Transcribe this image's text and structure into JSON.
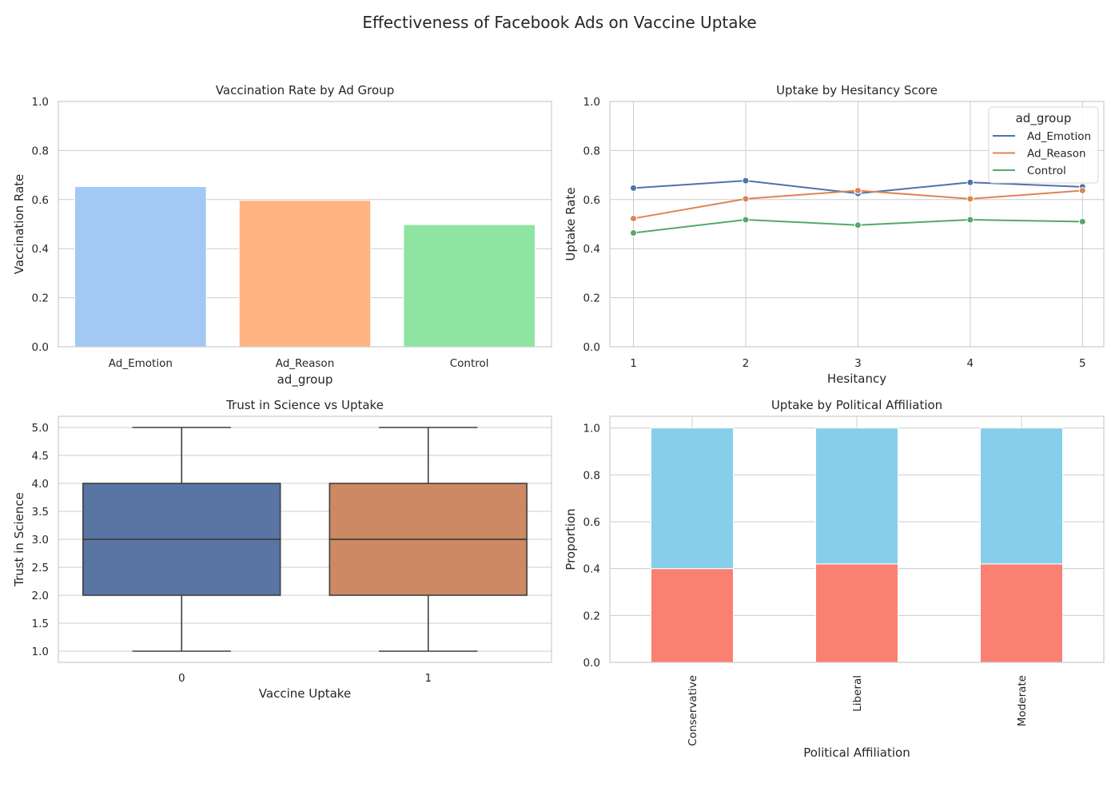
{
  "figure": {
    "title": "Effectiveness of Facebook Ads on Vaccine Uptake"
  },
  "chart_data": [
    {
      "type": "bar",
      "title": "Vaccination Rate by Ad Group",
      "xlabel": "ad_group",
      "ylabel": "Vaccination Rate",
      "categories": [
        "Ad_Emotion",
        "Ad_Reason",
        "Control"
      ],
      "values": [
        0.653,
        0.597,
        0.498
      ],
      "colors": [
        "#a1c9f4",
        "#ffb482",
        "#8de5a1"
      ],
      "ylim": [
        0,
        1
      ],
      "yticks": [
        "0.0",
        "0.2",
        "0.4",
        "0.6",
        "0.8",
        "1.0"
      ],
      "grid": true
    },
    {
      "type": "line",
      "title": "Uptake by Hesitancy Score",
      "xlabel": "Hesitancy",
      "ylabel": "Uptake Rate",
      "x": [
        1,
        2,
        3,
        4,
        5
      ],
      "xticks": [
        "1",
        "2",
        "3",
        "4",
        "5"
      ],
      "ylim": [
        0,
        1
      ],
      "yticks": [
        "0.0",
        "0.2",
        "0.4",
        "0.6",
        "0.8",
        "1.0"
      ],
      "legend": {
        "title": "ad_group",
        "placement": "upper-right"
      },
      "series": [
        {
          "name": "Ad_Emotion",
          "values": [
            0.647,
            0.677,
            0.625,
            0.67,
            0.652
          ],
          "color": "#4c72b0"
        },
        {
          "name": "Ad_Reason",
          "values": [
            0.523,
            0.603,
            0.637,
            0.603,
            0.637
          ],
          "color": "#dd8452"
        },
        {
          "name": "Control",
          "values": [
            0.464,
            0.518,
            0.496,
            0.518,
            0.51
          ],
          "color": "#55a868"
        }
      ],
      "grid": true
    },
    {
      "type": "box",
      "title": "Trust in Science vs Uptake",
      "xlabel": "Vaccine Uptake",
      "ylabel": "Trust in Science",
      "categories": [
        "0",
        "1"
      ],
      "boxes": [
        {
          "whisker_low": 1.0,
          "q1": 2.0,
          "median": 3.0,
          "q3": 4.0,
          "whisker_high": 5.0,
          "color": "#5975a4"
        },
        {
          "whisker_low": 1.0,
          "q1": 2.0,
          "median": 3.0,
          "q3": 4.0,
          "whisker_high": 5.0,
          "color": "#cc8963"
        }
      ],
      "ylim": [
        0.8,
        5.2
      ],
      "yticks": [
        "1.0",
        "1.5",
        "2.0",
        "2.5",
        "3.0",
        "3.5",
        "4.0",
        "4.5",
        "5.0"
      ],
      "grid": true
    },
    {
      "type": "stacked-bar",
      "title": "Uptake by Political Affiliation",
      "xlabel": "Political Affiliation",
      "ylabel": "Proportion",
      "categories": [
        "Conservative",
        "Liberal",
        "Moderate"
      ],
      "series": [
        {
          "values": [
            0.4,
            0.42,
            0.42
          ],
          "color": "#fa8072"
        },
        {
          "values": [
            0.6,
            0.58,
            0.58
          ],
          "color": "#87ceeb"
        }
      ],
      "ylim": [
        0,
        1.05
      ],
      "yticks": [
        "0.0",
        "0.2",
        "0.4",
        "0.6",
        "0.8",
        "1.0"
      ],
      "grid": true
    }
  ]
}
